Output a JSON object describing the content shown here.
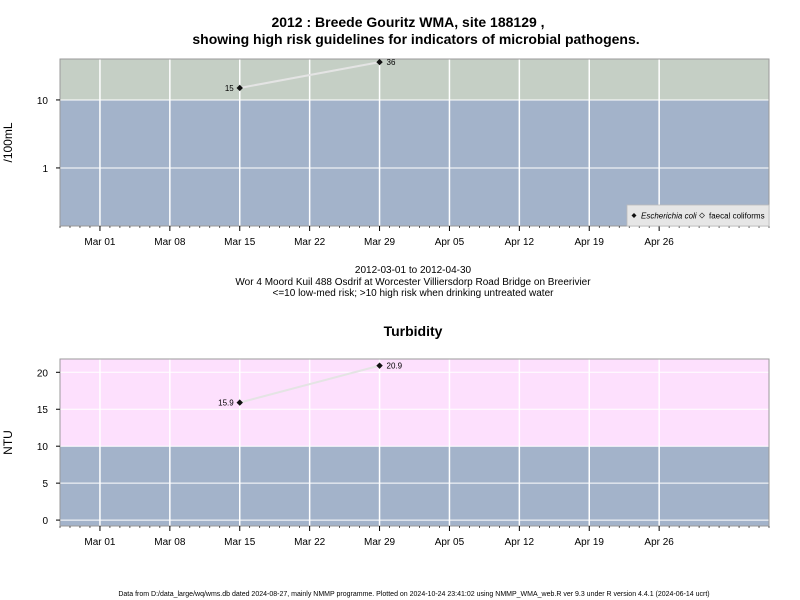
{
  "chart_data": [
    {
      "type": "line",
      "title_line1": "2012 : Breede Gouritz WMA, site 188129 ,",
      "title_line2": "showing high risk guidelines for indicators of microbial pathogens.",
      "ylabel": "/100mL",
      "yscale": "log",
      "yticks": [
        {
          "v": 1,
          "label": "1"
        },
        {
          "v": 10,
          "label": "10"
        }
      ],
      "ylim": [
        0.14,
        40
      ],
      "xlim": [
        "2012-02-26",
        "2012-05-07"
      ],
      "xticks": [
        {
          "date": "2012-03-01",
          "label": "Mar 01"
        },
        {
          "date": "2012-03-08",
          "label": "Mar 08"
        },
        {
          "date": "2012-03-15",
          "label": "Mar 15"
        },
        {
          "date": "2012-03-22",
          "label": "Mar 22"
        },
        {
          "date": "2012-03-29",
          "label": "Mar 29"
        },
        {
          "date": "2012-04-05",
          "label": "Apr 05"
        },
        {
          "date": "2012-04-12",
          "label": "Apr 12"
        },
        {
          "date": "2012-04-19",
          "label": "Apr 19"
        },
        {
          "date": "2012-04-26",
          "label": "Apr 26"
        }
      ],
      "threshold": 10,
      "band_colors": {
        "low": "#a3b3ca",
        "high": "#c5cfc5"
      },
      "series": [
        {
          "name": "Escherichia coli",
          "points": [
            {
              "date": "2012-03-15",
              "value": 15,
              "label": "15"
            },
            {
              "date": "2012-03-29",
              "value": 36,
              "label": "36"
            }
          ]
        },
        {
          "name": "faecal coliforms",
          "points": []
        }
      ],
      "legend_position": "bottom-right"
    },
    {
      "type": "line",
      "title": "Turbidity",
      "ylabel": "NTU",
      "yscale": "linear",
      "yticks": [
        {
          "v": 0,
          "label": "0"
        },
        {
          "v": 5,
          "label": "5"
        },
        {
          "v": 10,
          "label": "10"
        },
        {
          "v": 15,
          "label": "15"
        },
        {
          "v": 20,
          "label": "20"
        }
      ],
      "ylim": [
        -0.8,
        21.8
      ],
      "xlim": [
        "2012-02-26",
        "2012-05-07"
      ],
      "xticks": [
        {
          "date": "2012-03-01",
          "label": "Mar 01"
        },
        {
          "date": "2012-03-08",
          "label": "Mar 08"
        },
        {
          "date": "2012-03-15",
          "label": "Mar 15"
        },
        {
          "date": "2012-03-22",
          "label": "Mar 22"
        },
        {
          "date": "2012-03-29",
          "label": "Mar 29"
        },
        {
          "date": "2012-04-05",
          "label": "Apr 05"
        },
        {
          "date": "2012-04-12",
          "label": "Apr 12"
        },
        {
          "date": "2012-04-19",
          "label": "Apr 19"
        },
        {
          "date": "2012-04-26",
          "label": "Apr 26"
        }
      ],
      "threshold": 10,
      "band_colors": {
        "low": "#a3b3ca",
        "high": "#fde0fd"
      },
      "series": [
        {
          "name": "Turbidity",
          "points": [
            {
              "date": "2012-03-15",
              "value": 15.9,
              "label": "15.9"
            },
            {
              "date": "2012-03-29",
              "value": 20.9,
              "label": "20.9"
            }
          ]
        }
      ]
    }
  ],
  "caption": {
    "line1": "2012-03-01 to 2012-04-30",
    "line2": "Wor 4 Moord Kuil 488 Osdrif at Worcester Villiersdorp Road Bridge on Breerivier",
    "line3": "<=10 low-med risk; >10 high risk when drinking untreated water"
  },
  "footer": "Data from D:/data_large/wq/wms.db dated 2024-08-27, mainly NMMP programme. Plotted on 2024-10-24 23:41:02 using NMMP_WMA_web.R ver 9.3 under R version 4.4.1 (2024-06-14 ucrt)"
}
